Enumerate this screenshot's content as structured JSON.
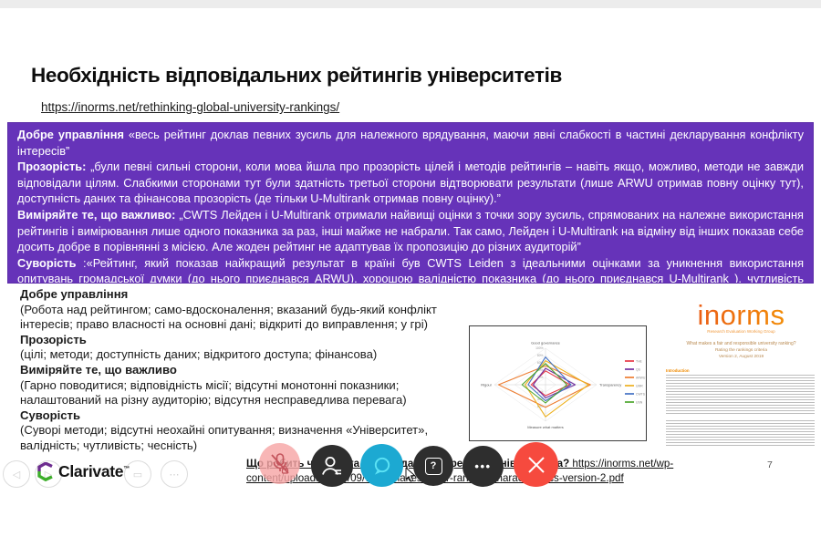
{
  "slide": {
    "title": "Необхідність відповідальних рейтингів університетів",
    "link": "https://inorms.net/rethinking-global-university-rankings/",
    "page_number": "7"
  },
  "purple_box": {
    "bg_color": "#6633b9",
    "paragraphs": [
      {
        "lead": "Добре управління",
        "text": " «весь рейтинг доклав певних зусиль для належного врядування, маючи явні слабкості в частині декларування конфлікту інтересів”"
      },
      {
        "lead": "Прозорість:",
        "text": " „були певні сильні сторони, коли мова йшла про прозорість цілей і методів рейтингів – навіть якщо, можливо, методи не завжди відповідали цілям. Слабкими сторонами тут були здатність третьої сторони відтворювати результати (лише ARWU отримав повну оцінку тут), доступність даних та фінансова прозорість (де тільки U-Multirank отримав повну оцінку).”"
      },
      {
        "lead": "Виміряйте те, що важливо:",
        "text": " „CWTS Лейден і U-Multirank отримали найвищі оцінки з точки зору зусиль, спрямованих на належне використання рейтингів і вимірювання лише одного показника за раз, інші майже не набрали. Так само, Лейден і U-Multirank на відміну від інших показав себе досить добре в порівнянні з місією. Але жоден рейтинг не адаптував їх пропозицію до різних аудиторій”"
      },
      {
        "lead": "Суворість",
        "text": " :«Рейтинг, який показав найкращий результат в країні  був CWTS Leiden з ідеальними оцінками за уникнення використання опитувань громадської думки (до нього приєднався ARWU), хорошою валідністю показника (до нього приєднався U-Multirank ), чутливість індикатора та використання панелей помилок для індикації невизначеності.”"
      }
    ]
  },
  "criteria_list": [
    {
      "head": "Добре управління",
      "body": "(Робота над рейтингом; само-вдосконалення; вказаний будь-який конфлікт інтересів; право власності на основні дані; відкриті до виправлення; у грі)"
    },
    {
      "head": "Прозорість",
      "body": "(цілі; методи; доступність даних; відкритого доступа; фінансова)"
    },
    {
      "head": "Виміряйте те, що важливо",
      "body": "(Гарно поводитися; відповідність місії; відсутні монотонні показники; налаштований на різну аудиторію; відсутня несправедлива перевага)"
    },
    {
      "head": "Суворість",
      "body": "(Суворі методи; відсутні неохайні опитування; визначення «Університет», валідність; чутливість; чесність)"
    }
  ],
  "chart_data": {
    "type": "radar",
    "axes": [
      "Good governance",
      "Transparency",
      "Measure what matters",
      "Rigour"
    ],
    "ticks": [
      20,
      40,
      60,
      80,
      100
    ],
    "ylim": [
      0,
      100
    ],
    "legend_position": "right",
    "grid": true,
    "series": [
      {
        "name": "THE",
        "color": "#e63946",
        "values": [
          38,
          48,
          30,
          28
        ]
      },
      {
        "name": "QS",
        "color": "#7030a0",
        "values": [
          45,
          58,
          36,
          24
        ]
      },
      {
        "name": "ARWU",
        "color": "#ed7d31",
        "values": [
          52,
          88,
          62,
          92
        ]
      },
      {
        "name": "UMR",
        "color": "#edb120",
        "values": [
          66,
          84,
          88,
          40
        ]
      },
      {
        "name": "CWTS",
        "color": "#4472c4",
        "values": [
          76,
          50,
          44,
          34
        ]
      },
      {
        "name": "USN",
        "color": "#4ea72e",
        "values": [
          58,
          42,
          50,
          46
        ]
      }
    ]
  },
  "doc": {
    "logo": "inorms",
    "logo_sub": "Research Evaluation Working Group",
    "title_line1": "What makes a fair and responsible university ranking?",
    "title_line2": "Rating the rankings criteria",
    "title_line3": "Version 2, August 2019",
    "intro_heading": "Introduction"
  },
  "footer": {
    "clarivate_label": "Clarivate",
    "clarivate_tm": "™",
    "ghost_icons": [
      "◁",
      "▷",
      "▭",
      "⋯"
    ],
    "link": {
      "question": "Що робить чесним та відповідальним рейтинг університета? ",
      "url_line1": "https://inorms.net/wp-",
      "url_line2": "content/uploads/2019/09/what-makes-a-fair-ranking-characteristics-version-2.pdf"
    }
  },
  "controls": {
    "help_glyph": "?",
    "more_glyph": "•••"
  }
}
